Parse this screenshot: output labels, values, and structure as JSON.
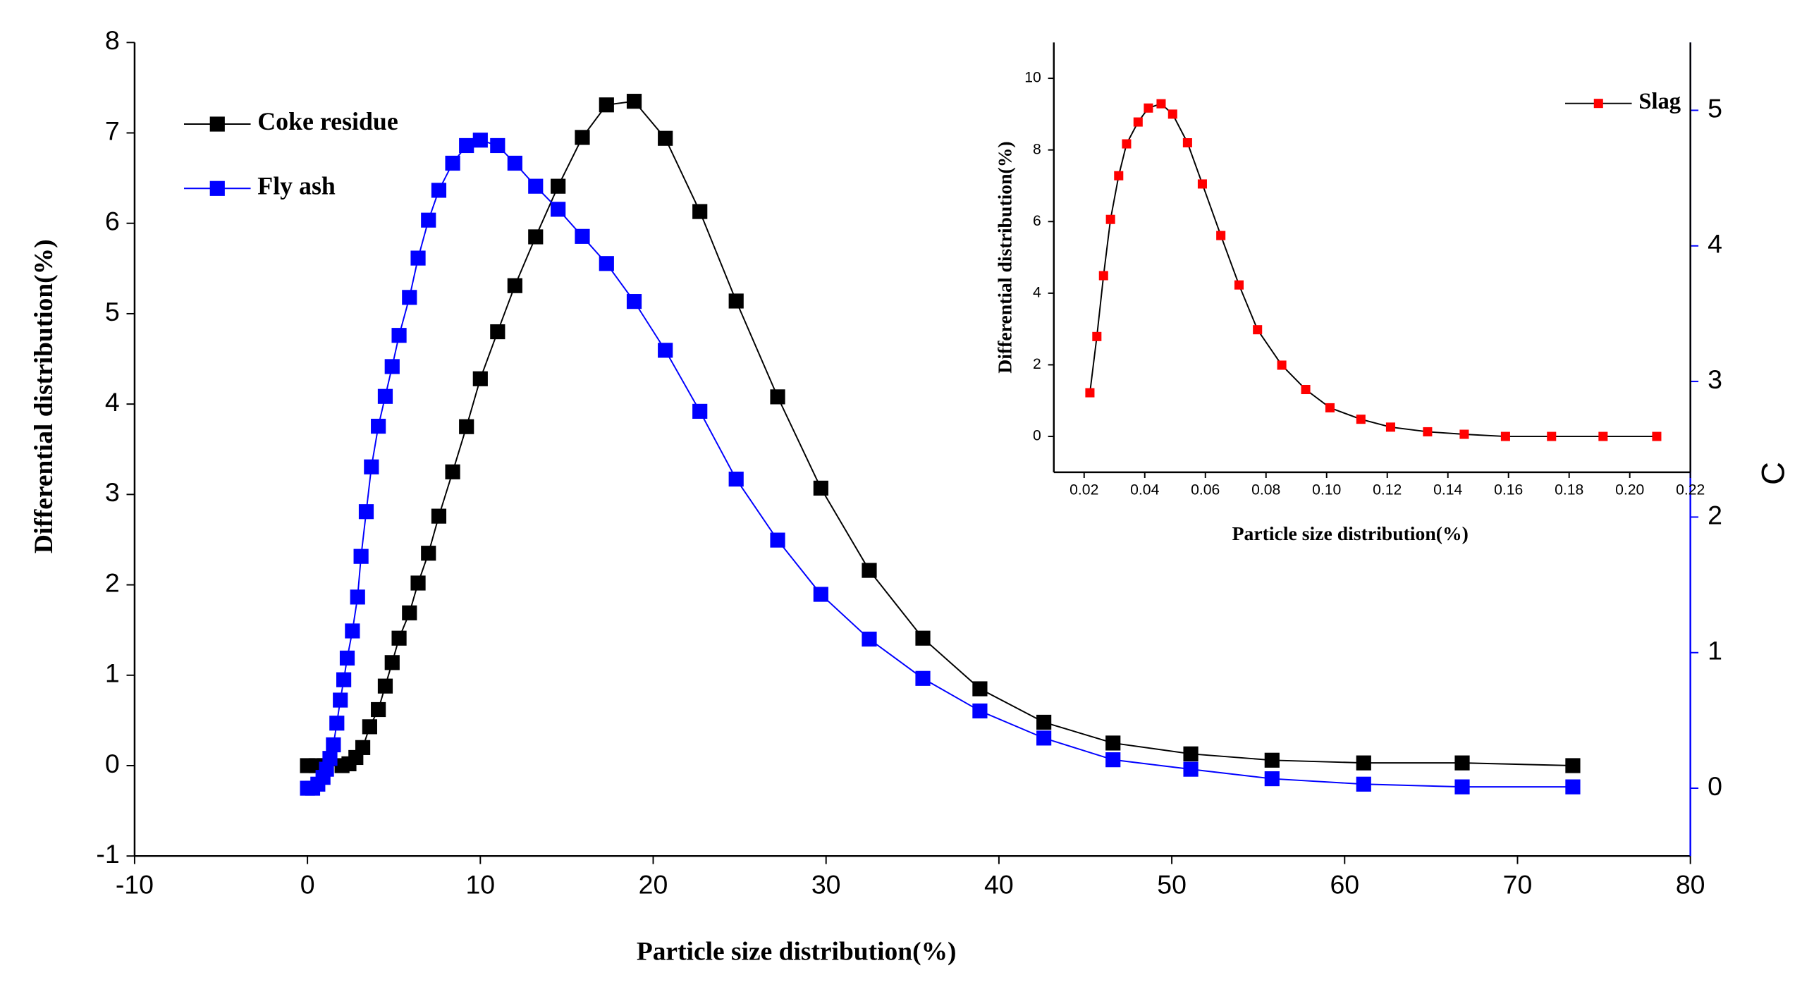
{
  "chart_data": [
    {
      "type": "line",
      "xlabel": "Particle size distribution(%)",
      "ylabel": "Differential distribution(%)",
      "y2label": "C",
      "xlim": [
        -10,
        80
      ],
      "xticks": [
        -10,
        0,
        10,
        20,
        30,
        40,
        50,
        60,
        70,
        80
      ],
      "ylim": [
        -1,
        8
      ],
      "yticks": [
        -1,
        0,
        1,
        2,
        3,
        4,
        5,
        6,
        7,
        8
      ],
      "y2lim": [
        -0.5,
        5.5
      ],
      "y2ticks": [
        0,
        1,
        2,
        3,
        4,
        5
      ],
      "legend": "upper left",
      "series": [
        {
          "name": "Coke residue",
          "color": "#000000",
          "x": [
            0,
            0.5,
            1.0,
            2.0,
            2.4,
            2.8,
            3.2,
            3.6,
            4.1,
            4.5,
            4.9,
            5.3,
            5.9,
            6.4,
            7.0,
            7.6,
            8.4,
            9.2,
            10.0,
            11.0,
            12.0,
            13.2,
            14.5,
            15.9,
            17.3,
            18.9,
            20.7,
            22.7,
            24.8,
            27.2,
            29.7,
            32.5,
            35.6,
            38.9,
            42.6,
            46.6,
            51.1,
            55.8,
            61.1,
            66.8,
            73.2
          ],
          "values": [
            0,
            0,
            0,
            0,
            0.02,
            0.09,
            0.2,
            0.43,
            0.62,
            0.88,
            1.14,
            1.41,
            1.69,
            2.02,
            2.35,
            2.76,
            3.25,
            3.75,
            4.28,
            4.8,
            5.31,
            5.85,
            6.41,
            6.95,
            7.31,
            7.35,
            6.94,
            6.13,
            5.14,
            4.08,
            3.07,
            2.16,
            1.41,
            0.85,
            0.48,
            0.25,
            0.13,
            0.06,
            0.03,
            0.03,
            0
          ]
        },
        {
          "name": "Fly ash",
          "color": "#0000ff",
          "axis": "y2",
          "x": [
            0,
            0.3,
            0.6,
            0.9,
            1.1,
            1.3,
            1.5,
            1.7,
            1.9,
            2.1,
            2.3,
            2.6,
            2.9,
            3.1,
            3.4,
            3.7,
            4.1,
            4.5,
            4.9,
            5.3,
            5.9,
            6.4,
            7.0,
            7.6,
            8.4,
            9.2,
            10.0,
            11.0,
            12.0,
            13.2,
            14.5,
            15.9,
            17.3,
            18.9,
            20.7,
            22.7,
            24.8,
            27.2,
            29.7,
            32.5,
            35.6,
            38.9,
            42.6,
            46.6,
            51.1,
            55.8,
            61.1,
            66.8,
            73.2
          ],
          "values": [
            0,
            0,
            0.03,
            0.08,
            0.14,
            0.22,
            0.32,
            0.48,
            0.65,
            0.8,
            0.96,
            1.16,
            1.41,
            1.71,
            2.04,
            2.37,
            2.67,
            2.89,
            3.11,
            3.34,
            3.62,
            3.91,
            4.19,
            4.41,
            4.61,
            4.74,
            4.78,
            4.74,
            4.61,
            4.44,
            4.27,
            4.07,
            3.87,
            3.59,
            3.23,
            2.78,
            2.28,
            1.83,
            1.43,
            1.1,
            0.81,
            0.57,
            0.37,
            0.21,
            0.14,
            0.07,
            0.03,
            0.01,
            0.01
          ]
        }
      ]
    },
    {
      "type": "line",
      "xlabel": "Particle size distribution(%)",
      "ylabel": "Differential distribution(%)",
      "xlim": [
        0.01,
        0.22
      ],
      "xticks": [
        0.02,
        0.04,
        0.06,
        0.08,
        {
          "value": 0.1,
          "label": "0.10"
        },
        0.12,
        0.14,
        0.16,
        0.18,
        {
          "value": 0.2,
          "label": "0.20"
        },
        0.22
      ],
      "ylim": [
        -1,
        11
      ],
      "yticks": [
        0,
        2,
        4,
        6,
        8,
        10
      ],
      "legend": "upper right",
      "series": [
        {
          "name": "Slag",
          "color": "#ff0000",
          "x": [
            0.0219,
            0.0242,
            0.0264,
            0.0287,
            0.0314,
            0.034,
            0.0378,
            0.0412,
            0.0454,
            0.0492,
            0.0541,
            0.059,
            0.0651,
            0.0711,
            0.0772,
            0.0852,
            0.0931,
            0.1011,
            0.1113,
            0.1211,
            0.1333,
            0.1454,
            0.159,
            0.1742,
            0.1912,
            0.2089
          ],
          "values": [
            1.22,
            2.79,
            4.49,
            6.06,
            7.28,
            8.17,
            8.78,
            9.17,
            9.29,
            9.0,
            8.2,
            7.05,
            5.61,
            4.23,
            2.98,
            1.99,
            1.31,
            0.8,
            0.48,
            0.26,
            0.13,
            0.06,
            0,
            0,
            0,
            0
          ]
        }
      ]
    }
  ]
}
